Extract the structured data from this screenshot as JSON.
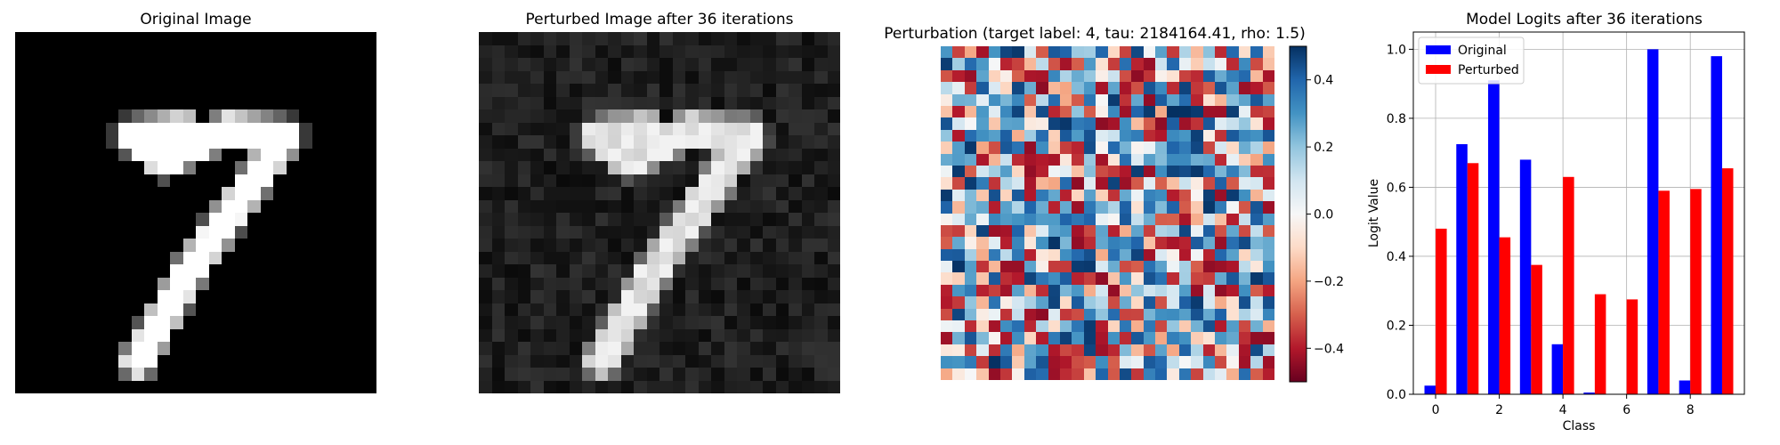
{
  "panels": {
    "original_title": "Original Image",
    "perturbed_title": "Perturbed Image after 36 iterations",
    "perturbation_title": "Perturbation (target label: 4, tau: 2184164.41, rho: 1.5)",
    "logits_title": "Model Logits after 36 iterations"
  },
  "colorbar": {
    "colormap": "RdBu",
    "ticks": [
      "0.4",
      "0.2",
      "0.0",
      "−0.2",
      "−0.4"
    ],
    "range": [
      -0.5,
      0.5
    ]
  },
  "chart_data": [
    {
      "type": "heatmap",
      "title": "Original Image",
      "colormap": "gray",
      "size": [
        28,
        28
      ],
      "description_of_content": "handwritten digit 7"
    },
    {
      "type": "heatmap",
      "title": "Perturbed Image after 36 iterations",
      "colormap": "gray",
      "size": [
        28,
        28
      ]
    },
    {
      "type": "heatmap",
      "title": "Perturbation (target label: 4, tau: 2184164.41, rho: 1.5)",
      "colormap": "RdBu",
      "size": [
        28,
        28
      ],
      "vlim": [
        -0.5,
        0.5
      ]
    },
    {
      "type": "bar",
      "title": "Model Logits after 36 iterations",
      "xlabel": "Class",
      "ylabel": "Logit Value",
      "categories": [
        0,
        1,
        2,
        3,
        4,
        5,
        6,
        7,
        8,
        9
      ],
      "xticks": [
        0,
        2,
        4,
        6,
        8
      ],
      "yticks": [
        0.0,
        0.2,
        0.4,
        0.6,
        0.8,
        1.0
      ],
      "ylim": [
        0,
        1.05
      ],
      "grid": true,
      "legend": "top-left",
      "series": [
        {
          "name": "Original",
          "color": "#0000ff",
          "values": [
            0.025,
            0.725,
            0.91,
            0.68,
            0.145,
            0.005,
            0.0,
            1.0,
            0.04,
            0.98
          ]
        },
        {
          "name": "Perturbed",
          "color": "#ff0000",
          "values": [
            0.48,
            0.67,
            0.455,
            0.375,
            0.63,
            0.29,
            0.275,
            0.59,
            0.595,
            0.655
          ]
        }
      ]
    }
  ]
}
